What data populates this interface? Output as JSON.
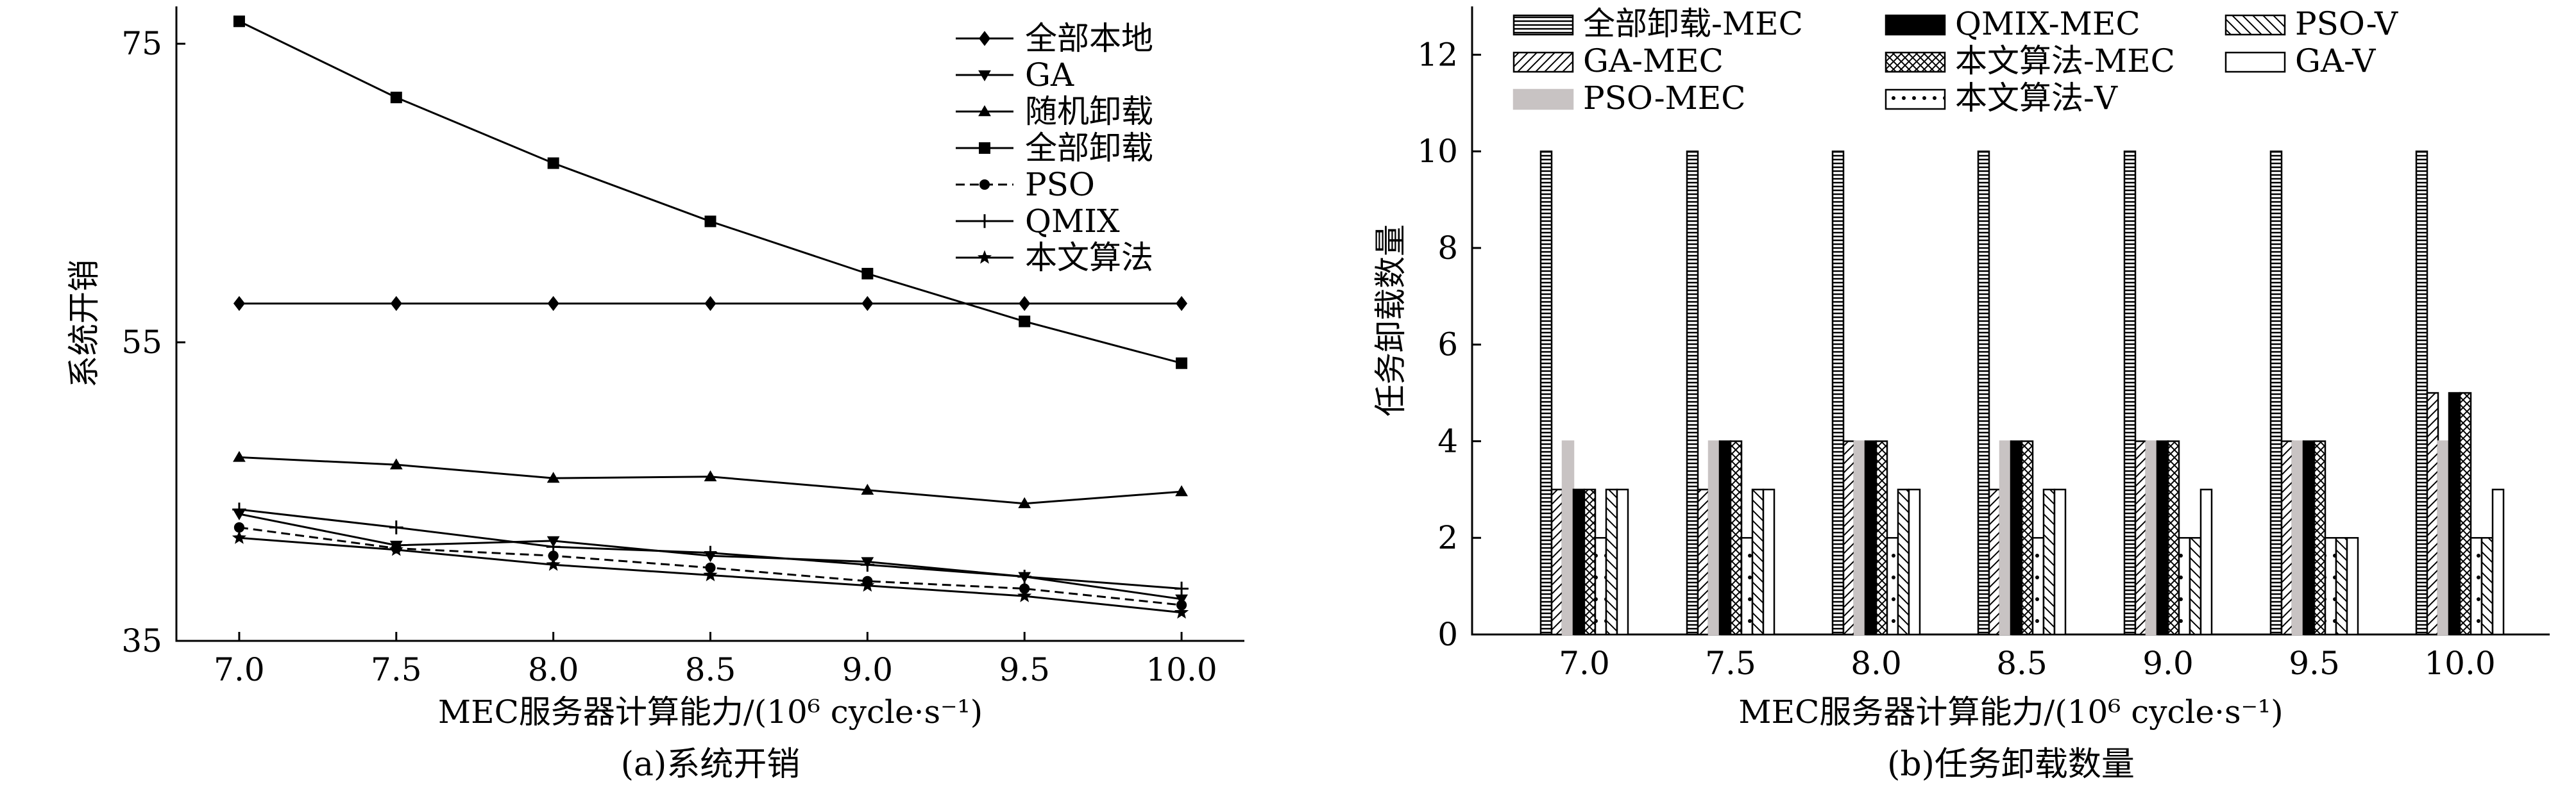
{
  "chart_data": [
    {
      "type": "line",
      "caption": "(a)系统开销",
      "xlabel": "MEC服务器计算能力/(10⁶ cycle·s⁻¹)",
      "ylabel": "系统开销",
      "x": [
        7.0,
        7.5,
        8.0,
        8.5,
        9.0,
        9.5,
        10.0
      ],
      "xticks": [
        "7.0",
        "7.5",
        "8.0",
        "8.5",
        "9.0",
        "9.5",
        "10.0"
      ],
      "yticks": [
        35,
        55,
        75
      ],
      "ylim": [
        35,
        77.5
      ],
      "grid": false,
      "legend_position": "top-right",
      "series": [
        {
          "name": "全部本地",
          "marker": "diamond",
          "dash": "solid",
          "values": [
            57.6,
            57.6,
            57.6,
            57.6,
            57.6,
            57.6,
            57.6
          ]
        },
        {
          "name": "GA",
          "marker": "triangle-down",
          "dash": "solid",
          "values": [
            43.5,
            41.4,
            41.7,
            40.7,
            40.3,
            39.3,
            37.8
          ]
        },
        {
          "name": "随机卸载",
          "marker": "triangle-up",
          "dash": "solid",
          "values": [
            47.3,
            46.8,
            45.9,
            46.0,
            45.1,
            44.2,
            45.0
          ]
        },
        {
          "name": "全部卸载",
          "marker": "square",
          "dash": "solid",
          "values": [
            76.5,
            71.4,
            67.0,
            63.1,
            59.6,
            56.4,
            53.6
          ]
        },
        {
          "name": "PSO",
          "marker": "circle",
          "dash": "dashed",
          "values": [
            42.6,
            41.2,
            40.7,
            39.9,
            39.0,
            38.5,
            37.4
          ]
        },
        {
          "name": "QMIX",
          "marker": "plus",
          "dash": "solid",
          "values": [
            43.8,
            42.6,
            41.3,
            40.9,
            40.1,
            39.3,
            38.5
          ]
        },
        {
          "name": "本文算法",
          "marker": "star",
          "dash": "solid",
          "values": [
            41.9,
            41.1,
            40.1,
            39.4,
            38.7,
            38.0,
            36.9
          ]
        }
      ]
    },
    {
      "type": "bar",
      "caption": "(b)任务卸载数量",
      "xlabel": "MEC服务器计算能力/(10⁶ cycle·s⁻¹)",
      "ylabel": "任务卸载数量",
      "categories": [
        "7.0",
        "7.5",
        "8.0",
        "8.5",
        "9.0",
        "9.5",
        "10.0"
      ],
      "yticks": [
        0,
        2,
        4,
        6,
        8,
        10,
        12
      ],
      "ylim": [
        0,
        13
      ],
      "grid": false,
      "legend_position": "top",
      "series": [
        {
          "name": "全部卸载-MEC",
          "pattern": "hlines",
          "values": [
            10,
            10,
            10,
            10,
            10,
            10,
            10
          ]
        },
        {
          "name": "GA-MEC",
          "pattern": "diag",
          "values": [
            3,
            3,
            4,
            3,
            4,
            4,
            5
          ]
        },
        {
          "name": "PSO-MEC",
          "pattern": "gray",
          "values": [
            4,
            4,
            4,
            4,
            4,
            4,
            4
          ]
        },
        {
          "name": "QMIX-MEC",
          "pattern": "black",
          "values": [
            3,
            4,
            4,
            4,
            4,
            4,
            5
          ]
        },
        {
          "name": "本文算法-MEC",
          "pattern": "cross",
          "values": [
            3,
            4,
            4,
            4,
            4,
            4,
            5
          ]
        },
        {
          "name": "本文算法-V",
          "pattern": "dots",
          "values": [
            2,
            2,
            2,
            2,
            2,
            2,
            2
          ]
        },
        {
          "name": "PSO-V",
          "pattern": "backdiag",
          "values": [
            3,
            3,
            3,
            3,
            2,
            2,
            2
          ]
        },
        {
          "name": "GA-V",
          "pattern": "white",
          "values": [
            3,
            3,
            3,
            3,
            3,
            2,
            3
          ]
        }
      ]
    }
  ]
}
